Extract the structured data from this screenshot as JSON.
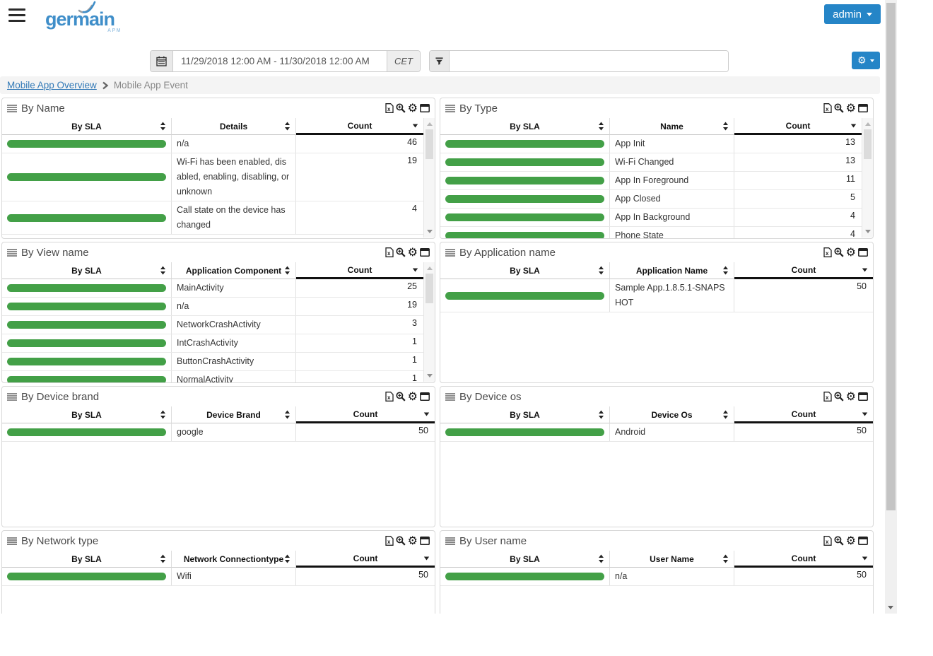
{
  "topbar": {
    "brand": "germain",
    "brand_sub": "APM",
    "admin_label": "admin"
  },
  "toolbar": {
    "date_range": "11/29/2018 12:00 AM - 11/30/2018 12:00 AM",
    "timezone": "CET",
    "filter_value": ""
  },
  "breadcrumb": {
    "link": "Mobile App Overview",
    "current": "Mobile App Event"
  },
  "icons": {
    "gear": "⚙"
  },
  "colors": {
    "accent_blue": "#2585c7",
    "link_blue": "#337ab7",
    "bar_green": "#43a047"
  },
  "table": {
    "col1": "By SLA",
    "col3": "Count",
    "sorted_by": "Count",
    "sort_direction": "desc"
  },
  "panels": [
    {
      "title": "By Name",
      "col2": "Details",
      "scrollbar": true,
      "rows": [
        {
          "text": "n/a",
          "count": 46
        },
        {
          "text": "Wi-Fi has been enabled, disabled, enabling, disabling, or unknown",
          "count": 19
        },
        {
          "text": "Call state on the device has changed",
          "count": 4
        }
      ]
    },
    {
      "title": "By Type",
      "col2": "Name",
      "scrollbar": true,
      "rows": [
        {
          "text": "App Init",
          "count": 13
        },
        {
          "text": "Wi-Fi Changed",
          "count": 13
        },
        {
          "text": "App In Foreground",
          "count": 11
        },
        {
          "text": "App Closed",
          "count": 5
        },
        {
          "text": "App In Background",
          "count": 4
        },
        {
          "text": "Phone State",
          "count": 4
        }
      ]
    },
    {
      "title": "By View name",
      "col2": "Application Component",
      "scrollbar": true,
      "rows": [
        {
          "text": "MainActivity",
          "count": 25
        },
        {
          "text": "n/a",
          "count": 19
        },
        {
          "text": "NetworkCrashActivity",
          "count": 3
        },
        {
          "text": "IntCrashActivity",
          "count": 1
        },
        {
          "text": "ButtonCrashActivity",
          "count": 1
        },
        {
          "text": "NormalActivity",
          "count": 1
        }
      ]
    },
    {
      "title": "By Application name",
      "col2": "Application Name",
      "scrollbar": false,
      "rows": [
        {
          "text": "Sample App.1.8.5.1-SNAPSHOT",
          "count": 50
        }
      ]
    },
    {
      "title": "By Device brand",
      "col2": "Device Brand",
      "scrollbar": false,
      "rows": [
        {
          "text": "google",
          "count": 50
        }
      ]
    },
    {
      "title": "By Device os",
      "col2": "Device Os",
      "scrollbar": false,
      "rows": [
        {
          "text": "Android",
          "count": 50
        }
      ]
    },
    {
      "title": "By Network type",
      "col2": "Network Connectiontype",
      "scrollbar": false,
      "rows": [
        {
          "text": "Wifi",
          "count": 50
        }
      ]
    },
    {
      "title": "By User name",
      "col2": "User Name",
      "scrollbar": false,
      "rows": [
        {
          "text": "n/a",
          "count": 50
        }
      ]
    }
  ]
}
